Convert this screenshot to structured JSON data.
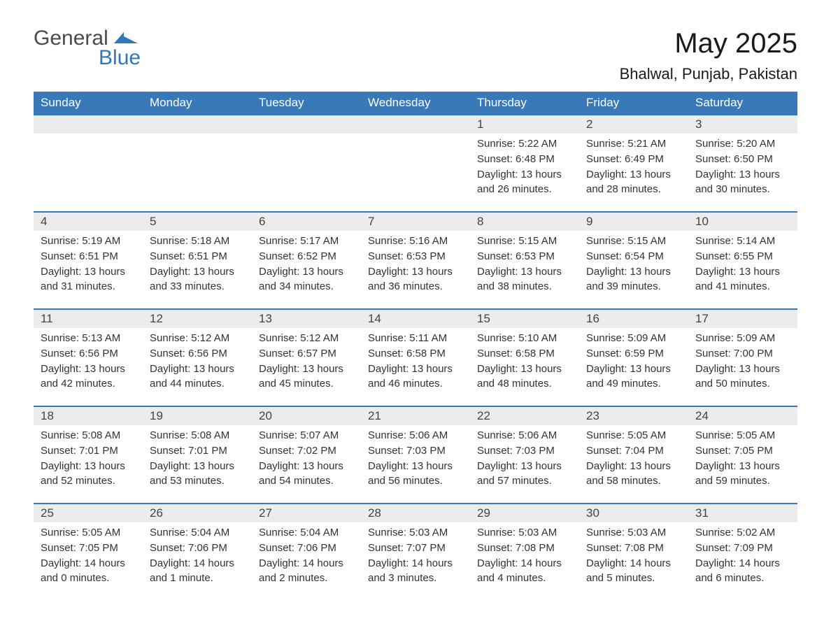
{
  "brand": {
    "text1": "General",
    "text2": "Blue",
    "accent": "#2f77bb"
  },
  "title": "May 2025",
  "location": "Bhalwal, Punjab, Pakistan",
  "colors": {
    "header_bg": "#3a79b7",
    "header_fg": "#ffffff",
    "row_border": "#3a79b7",
    "daynum_bg": "#ececec"
  },
  "weekdays": [
    "Sunday",
    "Monday",
    "Tuesday",
    "Wednesday",
    "Thursday",
    "Friday",
    "Saturday"
  ],
  "weeks": [
    [
      null,
      null,
      null,
      null,
      {
        "n": "1",
        "sunrise": "Sunrise: 5:22 AM",
        "sunset": "Sunset: 6:48 PM",
        "daylight": "Daylight: 13 hours and 26 minutes."
      },
      {
        "n": "2",
        "sunrise": "Sunrise: 5:21 AM",
        "sunset": "Sunset: 6:49 PM",
        "daylight": "Daylight: 13 hours and 28 minutes."
      },
      {
        "n": "3",
        "sunrise": "Sunrise: 5:20 AM",
        "sunset": "Sunset: 6:50 PM",
        "daylight": "Daylight: 13 hours and 30 minutes."
      }
    ],
    [
      {
        "n": "4",
        "sunrise": "Sunrise: 5:19 AM",
        "sunset": "Sunset: 6:51 PM",
        "daylight": "Daylight: 13 hours and 31 minutes."
      },
      {
        "n": "5",
        "sunrise": "Sunrise: 5:18 AM",
        "sunset": "Sunset: 6:51 PM",
        "daylight": "Daylight: 13 hours and 33 minutes."
      },
      {
        "n": "6",
        "sunrise": "Sunrise: 5:17 AM",
        "sunset": "Sunset: 6:52 PM",
        "daylight": "Daylight: 13 hours and 34 minutes."
      },
      {
        "n": "7",
        "sunrise": "Sunrise: 5:16 AM",
        "sunset": "Sunset: 6:53 PM",
        "daylight": "Daylight: 13 hours and 36 minutes."
      },
      {
        "n": "8",
        "sunrise": "Sunrise: 5:15 AM",
        "sunset": "Sunset: 6:53 PM",
        "daylight": "Daylight: 13 hours and 38 minutes."
      },
      {
        "n": "9",
        "sunrise": "Sunrise: 5:15 AM",
        "sunset": "Sunset: 6:54 PM",
        "daylight": "Daylight: 13 hours and 39 minutes."
      },
      {
        "n": "10",
        "sunrise": "Sunrise: 5:14 AM",
        "sunset": "Sunset: 6:55 PM",
        "daylight": "Daylight: 13 hours and 41 minutes."
      }
    ],
    [
      {
        "n": "11",
        "sunrise": "Sunrise: 5:13 AM",
        "sunset": "Sunset: 6:56 PM",
        "daylight": "Daylight: 13 hours and 42 minutes."
      },
      {
        "n": "12",
        "sunrise": "Sunrise: 5:12 AM",
        "sunset": "Sunset: 6:56 PM",
        "daylight": "Daylight: 13 hours and 44 minutes."
      },
      {
        "n": "13",
        "sunrise": "Sunrise: 5:12 AM",
        "sunset": "Sunset: 6:57 PM",
        "daylight": "Daylight: 13 hours and 45 minutes."
      },
      {
        "n": "14",
        "sunrise": "Sunrise: 5:11 AM",
        "sunset": "Sunset: 6:58 PM",
        "daylight": "Daylight: 13 hours and 46 minutes."
      },
      {
        "n": "15",
        "sunrise": "Sunrise: 5:10 AM",
        "sunset": "Sunset: 6:58 PM",
        "daylight": "Daylight: 13 hours and 48 minutes."
      },
      {
        "n": "16",
        "sunrise": "Sunrise: 5:09 AM",
        "sunset": "Sunset: 6:59 PM",
        "daylight": "Daylight: 13 hours and 49 minutes."
      },
      {
        "n": "17",
        "sunrise": "Sunrise: 5:09 AM",
        "sunset": "Sunset: 7:00 PM",
        "daylight": "Daylight: 13 hours and 50 minutes."
      }
    ],
    [
      {
        "n": "18",
        "sunrise": "Sunrise: 5:08 AM",
        "sunset": "Sunset: 7:01 PM",
        "daylight": "Daylight: 13 hours and 52 minutes."
      },
      {
        "n": "19",
        "sunrise": "Sunrise: 5:08 AM",
        "sunset": "Sunset: 7:01 PM",
        "daylight": "Daylight: 13 hours and 53 minutes."
      },
      {
        "n": "20",
        "sunrise": "Sunrise: 5:07 AM",
        "sunset": "Sunset: 7:02 PM",
        "daylight": "Daylight: 13 hours and 54 minutes."
      },
      {
        "n": "21",
        "sunrise": "Sunrise: 5:06 AM",
        "sunset": "Sunset: 7:03 PM",
        "daylight": "Daylight: 13 hours and 56 minutes."
      },
      {
        "n": "22",
        "sunrise": "Sunrise: 5:06 AM",
        "sunset": "Sunset: 7:03 PM",
        "daylight": "Daylight: 13 hours and 57 minutes."
      },
      {
        "n": "23",
        "sunrise": "Sunrise: 5:05 AM",
        "sunset": "Sunset: 7:04 PM",
        "daylight": "Daylight: 13 hours and 58 minutes."
      },
      {
        "n": "24",
        "sunrise": "Sunrise: 5:05 AM",
        "sunset": "Sunset: 7:05 PM",
        "daylight": "Daylight: 13 hours and 59 minutes."
      }
    ],
    [
      {
        "n": "25",
        "sunrise": "Sunrise: 5:05 AM",
        "sunset": "Sunset: 7:05 PM",
        "daylight": "Daylight: 14 hours and 0 minutes."
      },
      {
        "n": "26",
        "sunrise": "Sunrise: 5:04 AM",
        "sunset": "Sunset: 7:06 PM",
        "daylight": "Daylight: 14 hours and 1 minute."
      },
      {
        "n": "27",
        "sunrise": "Sunrise: 5:04 AM",
        "sunset": "Sunset: 7:06 PM",
        "daylight": "Daylight: 14 hours and 2 minutes."
      },
      {
        "n": "28",
        "sunrise": "Sunrise: 5:03 AM",
        "sunset": "Sunset: 7:07 PM",
        "daylight": "Daylight: 14 hours and 3 minutes."
      },
      {
        "n": "29",
        "sunrise": "Sunrise: 5:03 AM",
        "sunset": "Sunset: 7:08 PM",
        "daylight": "Daylight: 14 hours and 4 minutes."
      },
      {
        "n": "30",
        "sunrise": "Sunrise: 5:03 AM",
        "sunset": "Sunset: 7:08 PM",
        "daylight": "Daylight: 14 hours and 5 minutes."
      },
      {
        "n": "31",
        "sunrise": "Sunrise: 5:02 AM",
        "sunset": "Sunset: 7:09 PM",
        "daylight": "Daylight: 14 hours and 6 minutes."
      }
    ]
  ]
}
